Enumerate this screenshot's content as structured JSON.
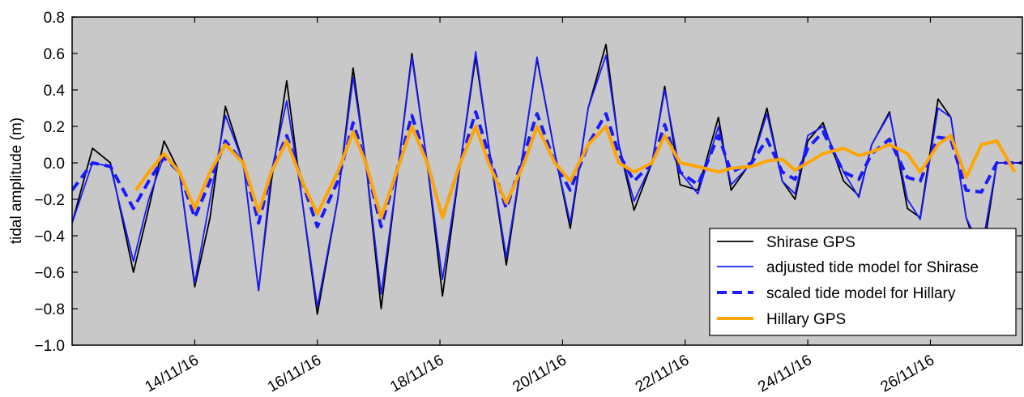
{
  "chart_data": {
    "type": "line",
    "title": "",
    "xlabel": "",
    "ylabel": "tidal amplitude (m)",
    "xlim": [
      "2016-11-12T00:00",
      "2016-11-27T12:00"
    ],
    "ylim": [
      -1.0,
      0.8
    ],
    "yticks": [
      -1.0,
      -0.8,
      -0.6,
      -0.4,
      -0.2,
      0.0,
      0.2,
      0.4,
      0.6,
      0.8
    ],
    "ytick_labels": [
      "−1.0",
      "−0.8",
      "−0.6",
      "−0.4",
      "−0.2",
      "0.0",
      "0.2",
      "0.4",
      "0.6",
      "0.8"
    ],
    "xticks": [
      "2016-11-14",
      "2016-11-16",
      "2016-11-18",
      "2016-11-20",
      "2016-11-22",
      "2016-11-24",
      "2016-11-26"
    ],
    "xtick_labels": [
      "14/11/16",
      "16/11/16",
      "18/11/16",
      "20/11/16",
      "22/11/16",
      "24/11/16",
      "26/11/16"
    ],
    "background": "#c8c8c8",
    "grid": false,
    "legend_position": "lower-right",
    "series": [
      {
        "name": "Shirase GPS",
        "color": "#000000",
        "style": "solid",
        "width": 1.8,
        "x": [
          "2016-11-12T00:00",
          "2016-11-12T08:00",
          "2016-11-12T15:00",
          "2016-11-13T00:00",
          "2016-11-13T06:00",
          "2016-11-13T12:00",
          "2016-11-13T18:00",
          "2016-11-14T00:00",
          "2016-11-14T06:00",
          "2016-11-14T12:00",
          "2016-11-14T19:00",
          "2016-11-15T01:00",
          "2016-11-15T06:00",
          "2016-11-15T12:00",
          "2016-11-15T18:00",
          "2016-11-16T00:00",
          "2016-11-16T08:00",
          "2016-11-16T14:00",
          "2016-11-16T19:00",
          "2016-11-17T01:00",
          "2016-11-17T07:00",
          "2016-11-17T13:00",
          "2016-11-17T19:00",
          "2016-11-18T01:00",
          "2016-11-18T08:00",
          "2016-11-18T14:00",
          "2016-11-18T19:00",
          "2016-11-19T02:00",
          "2016-11-19T09:00",
          "2016-11-19T14:00",
          "2016-11-19T21:00",
          "2016-11-20T03:00",
          "2016-11-20T10:00",
          "2016-11-20T17:00",
          "2016-11-20T22:00",
          "2016-11-21T04:00",
          "2016-11-21T11:00",
          "2016-11-21T16:00",
          "2016-11-21T22:00",
          "2016-11-22T05:00",
          "2016-11-22T13:00",
          "2016-11-22T18:00",
          "2016-11-23T02:00",
          "2016-11-23T08:00",
          "2016-11-23T14:00",
          "2016-11-23T19:00",
          "2016-11-24T00:00",
          "2016-11-24T06:00",
          "2016-11-24T14:00",
          "2016-11-24T20:00",
          "2016-11-25T01:00",
          "2016-11-25T08:00",
          "2016-11-25T15:00",
          "2016-11-25T20:00",
          "2016-11-26T03:00",
          "2016-11-26T08:00",
          "2016-11-26T14:00",
          "2016-11-26T20:00",
          "2016-11-27T02:00",
          "2016-11-27T09:00",
          "2016-11-27T12:00"
        ],
        "y": [
          -0.33,
          0.08,
          0.0,
          -0.6,
          -0.25,
          0.12,
          -0.05,
          -0.68,
          -0.3,
          0.31,
          0.0,
          -0.7,
          -0.1,
          0.45,
          -0.2,
          -0.83,
          -0.2,
          0.52,
          0.0,
          -0.8,
          -0.1,
          0.6,
          0.0,
          -0.73,
          0.0,
          0.58,
          0.1,
          -0.56,
          0.1,
          0.57,
          0.05,
          -0.36,
          0.3,
          0.65,
          0.1,
          -0.26,
          0.0,
          0.42,
          -0.12,
          -0.15,
          0.25,
          -0.15,
          0.01,
          0.3,
          -0.1,
          -0.2,
          0.12,
          0.22,
          -0.1,
          -0.18,
          0.1,
          0.28,
          -0.25,
          -0.3,
          0.35,
          0.25,
          -0.3,
          -0.55,
          0.0,
          0.0,
          0.0
        ]
      },
      {
        "name": "adjusted tide model for Shirase",
        "color": "#1a1aff",
        "style": "solid",
        "width": 1.8,
        "x": [
          "2016-11-12T00:00",
          "2016-11-12T08:00",
          "2016-11-12T15:00",
          "2016-11-13T00:00",
          "2016-11-13T06:00",
          "2016-11-13T12:00",
          "2016-11-13T18:00",
          "2016-11-14T00:00",
          "2016-11-14T06:00",
          "2016-11-14T12:00",
          "2016-11-14T19:00",
          "2016-11-15T01:00",
          "2016-11-15T06:00",
          "2016-11-15T12:00",
          "2016-11-15T18:00",
          "2016-11-16T00:00",
          "2016-11-16T08:00",
          "2016-11-16T14:00",
          "2016-11-16T19:00",
          "2016-11-17T01:00",
          "2016-11-17T07:00",
          "2016-11-17T13:00",
          "2016-11-17T19:00",
          "2016-11-18T01:00",
          "2016-11-18T08:00",
          "2016-11-18T14:00",
          "2016-11-18T19:00",
          "2016-11-19T02:00",
          "2016-11-19T09:00",
          "2016-11-19T14:00",
          "2016-11-19T21:00",
          "2016-11-20T03:00",
          "2016-11-20T10:00",
          "2016-11-20T17:00",
          "2016-11-20T22:00",
          "2016-11-21T04:00",
          "2016-11-21T11:00",
          "2016-11-21T16:00",
          "2016-11-21T22:00",
          "2016-11-22T05:00",
          "2016-11-22T13:00",
          "2016-11-22T18:00",
          "2016-11-23T02:00",
          "2016-11-23T08:00",
          "2016-11-23T14:00",
          "2016-11-23T19:00",
          "2016-11-24T00:00",
          "2016-11-24T06:00",
          "2016-11-24T14:00",
          "2016-11-24T20:00",
          "2016-11-25T01:00",
          "2016-11-25T08:00",
          "2016-11-25T15:00",
          "2016-11-25T20:00",
          "2016-11-26T03:00",
          "2016-11-26T08:00",
          "2016-11-26T14:00",
          "2016-11-26T20:00",
          "2016-11-27T02:00",
          "2016-11-27T09:00",
          "2016-11-27T12:00"
        ],
        "y": [
          -0.33,
          0.0,
          -0.02,
          -0.54,
          -0.2,
          0.04,
          -0.05,
          -0.66,
          -0.2,
          0.26,
          0.0,
          -0.7,
          -0.05,
          0.34,
          -0.2,
          -0.79,
          -0.2,
          0.47,
          0.0,
          -0.72,
          -0.1,
          0.58,
          0.0,
          -0.64,
          0.0,
          0.61,
          0.1,
          -0.52,
          0.1,
          0.58,
          0.05,
          -0.33,
          0.3,
          0.59,
          0.1,
          -0.21,
          0.0,
          0.4,
          -0.05,
          -0.17,
          0.2,
          -0.12,
          0.0,
          0.27,
          -0.1,
          -0.17,
          0.15,
          0.2,
          -0.05,
          -0.19,
          0.1,
          0.27,
          -0.2,
          -0.31,
          0.3,
          0.25,
          -0.3,
          -0.48,
          0.0,
          0.0,
          0.0
        ]
      },
      {
        "name": "scaled tide model for Hillary",
        "color": "#1a1aff",
        "style": "dashed",
        "width": 4,
        "x": [
          "2016-11-12T00:00",
          "2016-11-12T08:00",
          "2016-11-12T15:00",
          "2016-11-13T00:00",
          "2016-11-13T06:00",
          "2016-11-13T12:00",
          "2016-11-13T18:00",
          "2016-11-14T00:00",
          "2016-11-14T06:00",
          "2016-11-14T12:00",
          "2016-11-14T19:00",
          "2016-11-15T01:00",
          "2016-11-15T06:00",
          "2016-11-15T12:00",
          "2016-11-15T18:00",
          "2016-11-16T00:00",
          "2016-11-16T08:00",
          "2016-11-16T14:00",
          "2016-11-16T19:00",
          "2016-11-17T01:00",
          "2016-11-17T07:00",
          "2016-11-17T13:00",
          "2016-11-17T19:00",
          "2016-11-18T01:00",
          "2016-11-18T08:00",
          "2016-11-18T14:00",
          "2016-11-18T19:00",
          "2016-11-19T02:00",
          "2016-11-19T09:00",
          "2016-11-19T14:00",
          "2016-11-19T21:00",
          "2016-11-20T03:00",
          "2016-11-20T10:00",
          "2016-11-20T17:00",
          "2016-11-20T22:00",
          "2016-11-21T04:00",
          "2016-11-21T11:00",
          "2016-11-21T16:00",
          "2016-11-21T22:00",
          "2016-11-22T05:00",
          "2016-11-22T13:00",
          "2016-11-22T18:00",
          "2016-11-23T02:00",
          "2016-11-23T08:00",
          "2016-11-23T14:00",
          "2016-11-23T19:00",
          "2016-11-24T00:00",
          "2016-11-24T06:00",
          "2016-11-24T14:00",
          "2016-11-24T20:00",
          "2016-11-25T01:00",
          "2016-11-25T08:00",
          "2016-11-25T15:00",
          "2016-11-25T20:00",
          "2016-11-26T03:00",
          "2016-11-26T08:00",
          "2016-11-26T14:00",
          "2016-11-26T20:00",
          "2016-11-27T02:00",
          "2016-11-27T09:00",
          "2016-11-27T12:00"
        ],
        "y": [
          -0.15,
          0.0,
          -0.02,
          -0.25,
          -0.1,
          0.03,
          -0.05,
          -0.3,
          -0.1,
          0.12,
          0.0,
          -0.33,
          -0.05,
          0.15,
          -0.1,
          -0.35,
          -0.1,
          0.22,
          0.0,
          -0.35,
          -0.05,
          0.26,
          0.0,
          -0.3,
          0.0,
          0.28,
          0.05,
          -0.25,
          0.05,
          0.27,
          0.0,
          -0.15,
          0.1,
          0.27,
          0.05,
          -0.1,
          0.0,
          0.21,
          -0.05,
          -0.12,
          0.15,
          -0.05,
          0.0,
          0.13,
          -0.05,
          -0.09,
          0.08,
          0.17,
          -0.05,
          -0.09,
          0.05,
          0.13,
          -0.08,
          -0.1,
          0.14,
          0.13,
          -0.15,
          -0.16,
          0.0,
          0.0,
          0.0
        ]
      },
      {
        "name": "Hillary GPS",
        "color": "#ffa500",
        "style": "solid",
        "width": 4,
        "x": [
          "2016-11-13T01:00",
          "2016-11-13T06:00",
          "2016-11-13T12:00",
          "2016-11-13T18:00",
          "2016-11-14T00:00",
          "2016-11-14T06:00",
          "2016-11-14T12:00",
          "2016-11-14T19:00",
          "2016-11-15T01:00",
          "2016-11-15T06:00",
          "2016-11-15T12:00",
          "2016-11-15T18:00",
          "2016-11-16T00:00",
          "2016-11-16T08:00",
          "2016-11-16T14:00",
          "2016-11-16T19:00",
          "2016-11-17T01:00",
          "2016-11-17T07:00",
          "2016-11-17T13:00",
          "2016-11-17T19:00",
          "2016-11-18T01:00",
          "2016-11-18T08:00",
          "2016-11-18T14:00",
          "2016-11-18T19:00",
          "2016-11-19T02:00",
          "2016-11-19T09:00",
          "2016-11-19T14:00",
          "2016-11-19T21:00",
          "2016-11-20T03:00",
          "2016-11-20T10:00",
          "2016-11-20T17:00",
          "2016-11-20T22:00",
          "2016-11-21T04:00",
          "2016-11-21T11:00",
          "2016-11-21T16:00",
          "2016-11-21T22:00",
          "2016-11-22T05:00",
          "2016-11-22T13:00",
          "2016-11-22T18:00",
          "2016-11-23T02:00",
          "2016-11-23T08:00",
          "2016-11-23T14:00",
          "2016-11-23T19:00",
          "2016-11-24T00:00",
          "2016-11-24T06:00",
          "2016-11-24T14:00",
          "2016-11-24T20:00",
          "2016-11-25T01:00",
          "2016-11-25T08:00",
          "2016-11-25T15:00",
          "2016-11-25T20:00",
          "2016-11-26T03:00",
          "2016-11-26T08:00",
          "2016-11-26T14:00",
          "2016-11-26T20:00",
          "2016-11-27T02:00",
          "2016-11-27T09:00"
        ],
        "y": [
          -0.15,
          -0.05,
          0.05,
          -0.05,
          -0.25,
          -0.05,
          0.1,
          0.0,
          -0.27,
          -0.05,
          0.12,
          -0.1,
          -0.28,
          -0.05,
          0.17,
          0.0,
          -0.3,
          -0.05,
          0.2,
          0.0,
          -0.3,
          0.0,
          0.2,
          0.0,
          -0.22,
          0.0,
          0.2,
          0.0,
          -0.1,
          0.1,
          0.2,
          0.0,
          -0.05,
          0.0,
          0.15,
          0.0,
          -0.02,
          -0.05,
          -0.03,
          -0.02,
          0.01,
          0.02,
          -0.04,
          0.0,
          0.05,
          0.08,
          0.04,
          0.06,
          0.1,
          0.05,
          -0.05,
          0.1,
          0.15,
          -0.08,
          0.1,
          0.12,
          -0.05
        ]
      }
    ]
  }
}
